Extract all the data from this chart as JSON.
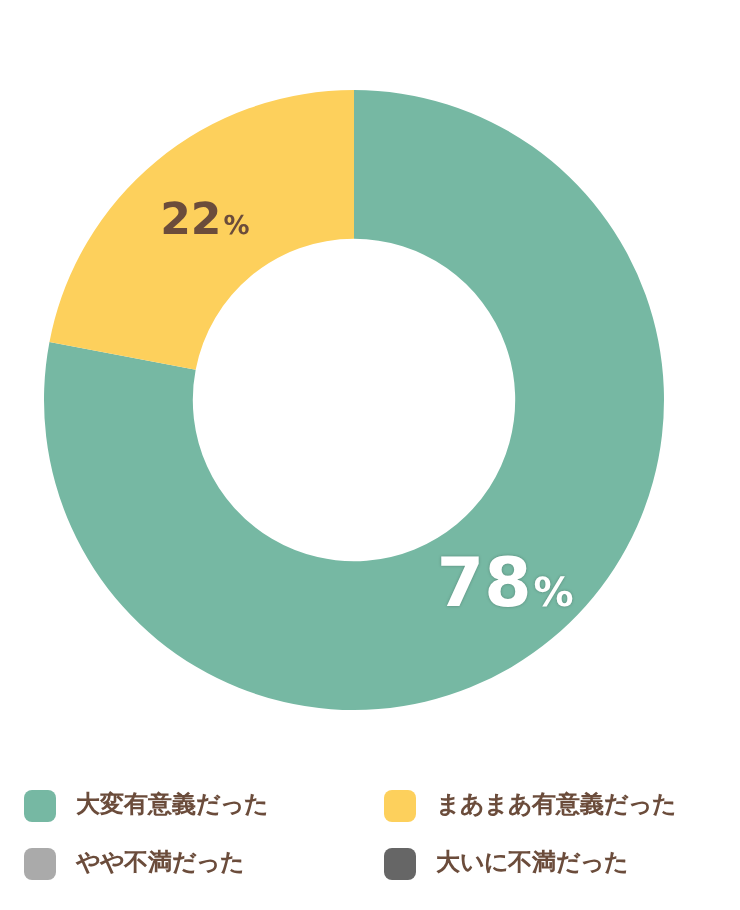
{
  "chart_data": {
    "type": "donut",
    "categories": [
      "大変有意義だった",
      "まあまあ有意義だった",
      "やや不満だった",
      "大いに不満だった"
    ],
    "values": [
      78,
      22,
      0,
      0
    ],
    "colors": [
      "#76b8a3",
      "#fdd05c",
      "#aaaaaa",
      "#666666"
    ],
    "value_labels": [
      "78%",
      "22%",
      null,
      null
    ],
    "legend": "bottom"
  }
}
